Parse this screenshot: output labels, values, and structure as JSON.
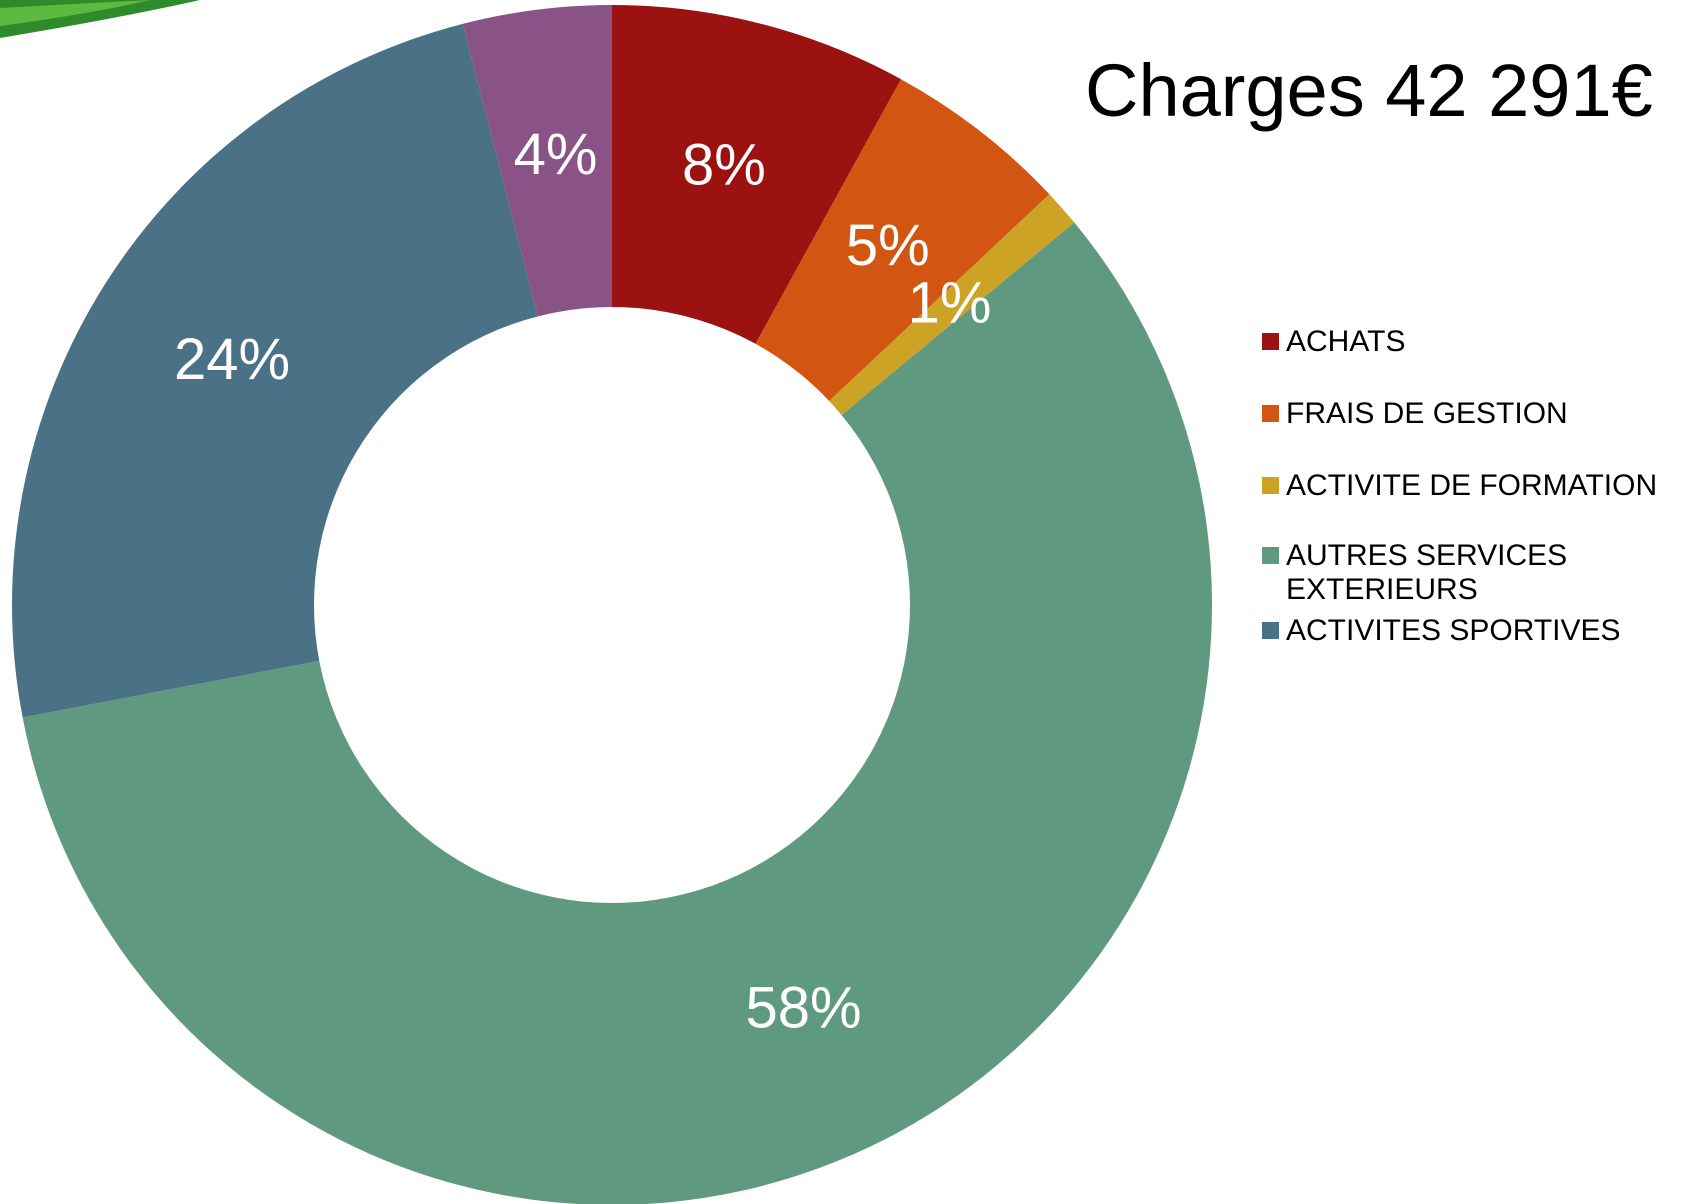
{
  "chart_data": {
    "type": "pie",
    "title": "Charges 42 291€",
    "donut": true,
    "legend_position": "right",
    "slices": [
      {
        "name": "ACHATS",
        "value": 8,
        "label": "8%",
        "color": "#9B1210"
      },
      {
        "name": "FRAIS DE GESTION",
        "value": 5,
        "label": "5%",
        "color": "#D25611"
      },
      {
        "name": "ACTIVITE DE FORMATION",
        "value": 1,
        "label": "1%",
        "color": "#CCA324"
      },
      {
        "name": "AUTRES SERVICES EXTERIEURS",
        "value": 58,
        "label": "58%",
        "color": "#5F9980"
      },
      {
        "name": "ACTIVITES SPORTIVES",
        "value": 24,
        "label": "24%",
        "color": "#4A7185"
      },
      {
        "name": "",
        "value": 4,
        "label": "4%",
        "color": "#8A5387"
      }
    ],
    "legend": [
      {
        "label": "ACHATS",
        "color": "#9B1210"
      },
      {
        "label": "FRAIS DE GESTION",
        "color": "#D25611"
      },
      {
        "label": "ACTIVITE DE FORMATION",
        "color": "#CCA324"
      },
      {
        "label": "AUTRES SERVICES\nEXTERIEURS",
        "color": "#5F9980"
      },
      {
        "label": "ACTIVITES SPORTIVES",
        "color": "#4A7185"
      }
    ]
  }
}
